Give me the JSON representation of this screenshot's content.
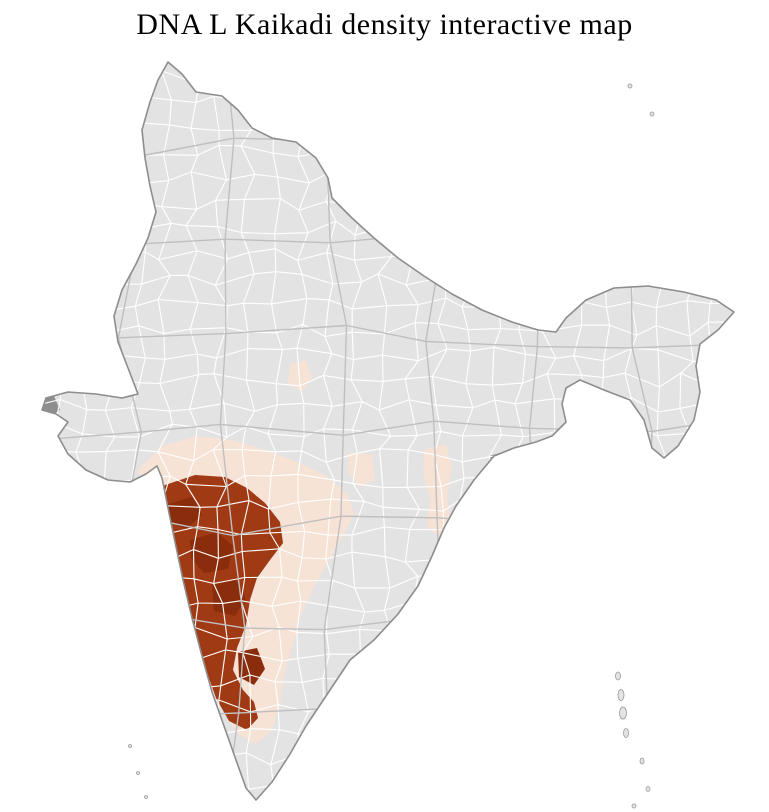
{
  "title": "DNA L Kaikadi density interactive map",
  "map": {
    "type": "choropleth",
    "colors": {
      "background": "#ffffff",
      "land": "#e3e3e3",
      "district_border": "#ffffff",
      "state_border": "#bfbfbf",
      "country_outline": "#8d8d8d",
      "no_data": "#8e8e8e",
      "density_low": "#f7e2d6",
      "density_high": "#a03a14",
      "density_highest": "#8a2d0c"
    },
    "density_levels": [
      {
        "level": "base",
        "color": "#e3e3e3"
      },
      {
        "level": "low",
        "color": "#f7e2d6"
      },
      {
        "level": "high",
        "color": "#a03a14"
      },
      {
        "level": "highest",
        "color": "#8a2d0c"
      },
      {
        "level": "no-data",
        "color": "#8e8e8e"
      }
    ]
  }
}
